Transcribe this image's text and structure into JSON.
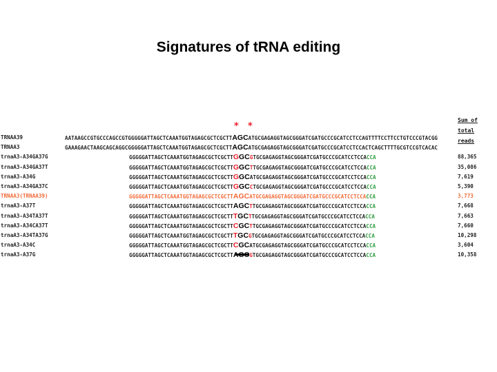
{
  "title": "Signatures of tRNA editing",
  "sum_header": [
    "Sum of total",
    "reads"
  ],
  "asterisks": [
    "*",
    "*"
  ],
  "colors": {
    "mismatch": "#e8202a",
    "cca": "#2e9e3e",
    "highlight_row": "#f26b38",
    "default": "#222222"
  },
  "rows": [
    {
      "name": "TRNAA39",
      "pre": "AATAAGCCGTGCCCAGCCGTGGGGGATTAGCTCAAATGGTAGAGCGCTCGCTT",
      "mid": [
        {
          "t": "AGC",
          "c": "default"
        }
      ],
      "post": "ATGCGAGAGGTAGCGGGATCGATGCCCGCATCCTCCAGTTTTCCTTCCTGTCCCGTACGG",
      "cca": "",
      "reads": "",
      "style": "full"
    },
    {
      "name": "TRNAA3",
      "pre": "GAAAGAACTAAGCAGCAGGCGGGGGATTAGCTCAAATGGTAGAGCGCTCGCTT",
      "mid": [
        {
          "t": "AGC",
          "c": "default"
        }
      ],
      "post": "ATGCGAGAGGTAGCGGGATCGATGCCCGCATCCTCCACTCAGCTTTTGCGTCCGTCACAC",
      "cca": "",
      "reads": "",
      "style": "full"
    },
    {
      "name": "trnaA3-A34GA37G",
      "pre": "GGGGGATTAGCTCAAATGGTAGAGCGCTCGCTT",
      "mid": [
        {
          "t": "G",
          "c": "mismatch"
        },
        {
          "t": "G",
          "c": "default"
        },
        {
          "t": "C",
          "c": "default"
        }
      ],
      "post": "GTGCGAGAGGTAGCGGGATCGATGCCCGCATCCTCCA",
      "cca": "CCA",
      "reads": "88,365",
      "style": "short",
      "post_first": "mismatch"
    },
    {
      "name": "trnaA3-A34GA37T",
      "pre": "GGGGGATTAGCTCAAATGGTAGAGCGCTCGCTT",
      "mid": [
        {
          "t": "G",
          "c": "mismatch"
        },
        {
          "t": "G",
          "c": "default"
        },
        {
          "t": "C",
          "c": "default"
        }
      ],
      "post": "TTGCGAGAGGTAGCGGGATCGATGCCCGCATCCTCCA",
      "cca": "CCA",
      "reads": "35,086",
      "style": "short",
      "post_first": "mismatch"
    },
    {
      "name": "trnaA3-A34G",
      "pre": "GGGGGATTAGCTCAAATGGTAGAGCGCTCGCTT",
      "mid": [
        {
          "t": "G",
          "c": "mismatch"
        },
        {
          "t": "G",
          "c": "default"
        },
        {
          "t": "C",
          "c": "default"
        }
      ],
      "post": "ATGCGAGAGGTAGCGGGATCGATGCCCGCATCCTCCA",
      "cca": "CCA",
      "reads": "7,619",
      "style": "short"
    },
    {
      "name": "trnaA3-A34GA37C",
      "pre": "GGGGGATTAGCTCAAATGGTAGAGCGCTCGCTT",
      "mid": [
        {
          "t": "G",
          "c": "mismatch"
        },
        {
          "t": "G",
          "c": "default"
        },
        {
          "t": "C",
          "c": "default"
        }
      ],
      "post": "CTGCGAGAGGTAGCGGGATCGATGCCCGCATCCTCCA",
      "cca": "CCA",
      "reads": "5,390",
      "style": "short",
      "post_first": "mismatch"
    },
    {
      "name": "TRNAA3(TRNAA39)",
      "pre": "GGGGGATTAGCTCAAATGGTAGAGCGCTCGCTT",
      "mid": [
        {
          "t": "AGC",
          "c": "default"
        }
      ],
      "post": "ATGCGAGAGGTAGCGGGATCGATGCCCGCATCCTCCA",
      "cca": "CCA",
      "reads": "3,773",
      "style": "short",
      "orange": true
    },
    {
      "name": "trnaA3-A37T",
      "pre": "GGGGGATTAGCTCAAATGGTAGAGCGCTCGCTT",
      "mid": [
        {
          "t": "AGC",
          "c": "default"
        }
      ],
      "post": "TTGCGAGAGGTAGCGGGATCGATGCCCGCATCCTCCA",
      "cca": "CCA",
      "reads": "7,668",
      "style": "short",
      "post_first": "mismatch"
    },
    {
      "name": "trnaA3-A34TA37T",
      "pre": "GGGGGATTAGCTCAAATGGTAGAGCGCTCGCTT",
      "mid": [
        {
          "t": "T",
          "c": "mismatch"
        },
        {
          "t": "G",
          "c": "default"
        },
        {
          "t": "C",
          "c": "default"
        }
      ],
      "post": "TTGCGAGAGGTAGCGGGATCGATGCCCGCATCCTCCA",
      "cca": "CCA",
      "reads": "7,663",
      "style": "short",
      "post_first": "mismatch"
    },
    {
      "name": "trnaA3-A34CA37T",
      "pre": "GGGGGATTAGCTCAAATGGTAGAGCGCTCGCTT",
      "mid": [
        {
          "t": "C",
          "c": "mismatch"
        },
        {
          "t": "G",
          "c": "default"
        },
        {
          "t": "C",
          "c": "default"
        }
      ],
      "post": "TTGCGAGAGGTAGCGGGATCGATGCCCGCATCCTCCA",
      "cca": "CCA",
      "reads": "7,660",
      "style": "short",
      "post_first": "mismatch"
    },
    {
      "name": "trnaA3-A34TA37G",
      "pre": "GGGGGATTAGCTCAAATGGTAGAGCGCTCGCTT",
      "mid": [
        {
          "t": "T",
          "c": "mismatch"
        },
        {
          "t": "G",
          "c": "default"
        },
        {
          "t": "C",
          "c": "default"
        }
      ],
      "post": "GTGCGAGAGGTAGCGGGATCGATGCCCGCATCCTCCA",
      "cca": "CCA",
      "reads": "10,298",
      "style": "short",
      "post_first": "mismatch"
    },
    {
      "name": "trnaA3-A34C",
      "pre": "GGGGGATTAGCTCAAATGGTAGAGCGCTCGCTT",
      "mid": [
        {
          "t": "C",
          "c": "mismatch"
        },
        {
          "t": "G",
          "c": "default"
        },
        {
          "t": "C",
          "c": "default"
        }
      ],
      "post": "ATGCGAGAGGTAGCGGGATCGATGCCCGCATCCTCCA",
      "cca": "CCA",
      "reads": "3,604",
      "style": "short"
    },
    {
      "name": "trnaA3-A37G",
      "pre": "GGGGGATTAGCTCAAATGGTAGAGCGCTCGCTT",
      "mid": [
        {
          "t": "AGC",
          "c": "default"
        }
      ],
      "post": "GTGCGAGAGGTAGCGGGATCGATGCCCGCATCCTCCA",
      "cca": "CCA",
      "reads": "10,358",
      "style": "short",
      "post_first": "mismatch"
    }
  ]
}
